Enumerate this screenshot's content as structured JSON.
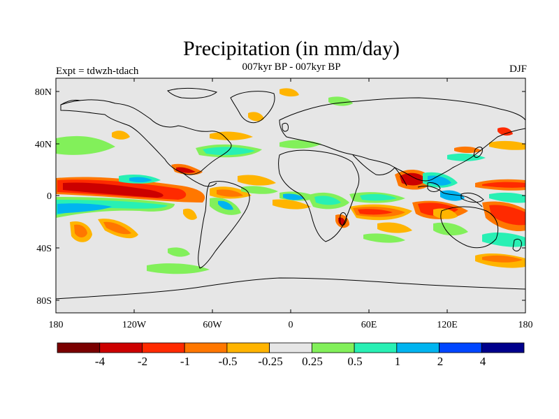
{
  "title": "Precipitation (in mm/day)",
  "subtitle": "007kyr BP - 007kyr BP",
  "left_label": "Expt = tdwzh-tdach",
  "right_label": "DJF",
  "map": {
    "projection": "cylindrical-equidistant",
    "lon_range": [
      -180,
      180
    ],
    "lat_range": [
      -90,
      90
    ],
    "lon_ticks": [
      "180",
      "120W",
      "60W",
      "0",
      "60E",
      "120E",
      "180"
    ],
    "lat_ticks": [
      "80N",
      "40N",
      "0",
      "40S",
      "80S"
    ],
    "land_mask_color": "#e6e6e6",
    "coastline_color": "#000000"
  },
  "colorbar": {
    "colors": [
      "#7a0000",
      "#cc0000",
      "#ff2a00",
      "#ff7700",
      "#ffb400",
      "#e6e6e6",
      "#82f05a",
      "#28f0b4",
      "#00b4f0",
      "#0046ff",
      "#00008c"
    ],
    "labels": [
      "-4",
      "-2",
      "-1",
      "-0.5",
      "-0.25",
      "0.25",
      "0.5",
      "1",
      "2",
      "4"
    ]
  }
}
